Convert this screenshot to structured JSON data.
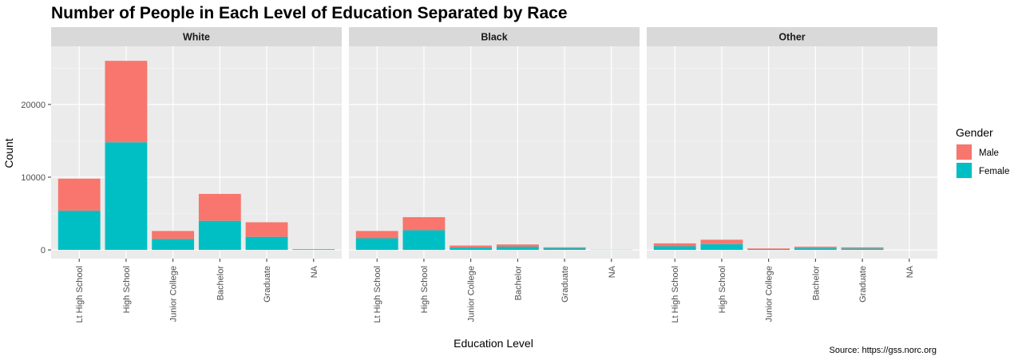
{
  "chart_data": {
    "type": "bar",
    "stacked": true,
    "title": "Number of People in Each Level of Education Separated by Race",
    "xlabel": "Education Level",
    "ylabel": "Count",
    "caption": "Source: https://gss.norc.org",
    "categories": [
      "Lt High School",
      "High School",
      "Junior College",
      "Bachelor",
      "Graduate",
      "NA"
    ],
    "ylim": [
      -1200,
      28000
    ],
    "yticks": [
      0,
      10000,
      20000
    ],
    "legend": {
      "title": "Gender",
      "position": "right",
      "entries": [
        {
          "name": "Male",
          "color": "#F8766D"
        },
        {
          "name": "Female",
          "color": "#00BFC4"
        }
      ]
    },
    "grid": true,
    "panels": [
      {
        "name": "White",
        "series": [
          {
            "name": "Female",
            "values": [
              5400,
              14800,
              1500,
              4000,
              1800,
              60
            ]
          },
          {
            "name": "Male",
            "values": [
              4400,
              11200,
              1100,
              3700,
              2000,
              40
            ]
          }
        ]
      },
      {
        "name": "Black",
        "series": [
          {
            "name": "Female",
            "values": [
              1600,
              2700,
              350,
              450,
              230,
              20
            ]
          },
          {
            "name": "Male",
            "values": [
              1000,
              1800,
              250,
              300,
              130,
              10
            ]
          }
        ]
      },
      {
        "name": "Other",
        "series": [
          {
            "name": "Female",
            "values": [
              500,
              800,
              120,
              250,
              200,
              0
            ]
          },
          {
            "name": "Male",
            "values": [
              400,
              600,
              80,
              200,
              150,
              0
            ]
          }
        ]
      }
    ]
  }
}
